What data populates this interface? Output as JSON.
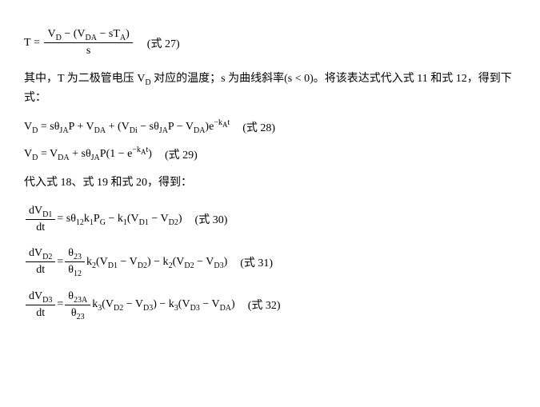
{
  "eq27": {
    "lhs": "T",
    "num_parts": {
      "VD": "V",
      "VD_sub": "D",
      "minus": " − (",
      "VDA": "V",
      "VDA_sub": "DA",
      "minus2": " − s",
      "TA": "T",
      "TA_sub": "A",
      "close": ")"
    },
    "den": "s",
    "label": "(式 27)"
  },
  "para1": {
    "t1": "其中，T 为二极管电压 V",
    "t1sub": "D",
    "t2": " 对应的温度；s 为曲线斜率(s < 0)。将该表达式代入式 11 和式 12，得到下式："
  },
  "eq28": {
    "p": {
      "VD": "V",
      "VDs": "D",
      "eq": " = sθ",
      "JA": "JA",
      "P": "P + ",
      "VDA": "V",
      "VDAs": "DA",
      "plus": " + (",
      "VDi": "V",
      "VDis": "Di",
      "m": " − sθ",
      "JA2": "JA",
      "P2": "P − ",
      "VDA2": "V",
      "VDA2s": "DA",
      "close": ")e",
      "exp1": "−k",
      "expA": "A",
      "expT": "t"
    },
    "label": "(式 28)"
  },
  "eq29": {
    "p": {
      "VD": "V",
      "VDs": "D",
      "eq": " = ",
      "VDA": "V",
      "VDAs": "DA",
      "plus": " + sθ",
      "JA": "JA",
      "P": "P(1 − e",
      "exp1": "−k",
      "expA": "A",
      "expT": "t",
      "close": ")"
    },
    "label": "(式 29)"
  },
  "para2": "代入式 18、式 19 和式 20，得到：",
  "eq30": {
    "num": {
      "d": "dV",
      "s": "D1"
    },
    "den": "dt",
    "rhs": {
      "a": " = sθ",
      "th": "12",
      "k": "k",
      "k1": "1",
      "PG": "P",
      "PGs": "G",
      "m": " − k",
      "k1b": "1",
      "o": "(V",
      "v1": "D1",
      "m2": " − V",
      "v2": "D2",
      "c": ")"
    },
    "label": "(式 30)"
  },
  "eq31": {
    "num": {
      "d": "dV",
      "s": "D2"
    },
    "den": "dt",
    "eq": " = ",
    "fnum": {
      "th": "θ",
      "s": "23"
    },
    "fden": {
      "th": "θ",
      "s": "12"
    },
    "rhs": {
      "k": "k",
      "k2": "2",
      "o": "(V",
      "v1": "D1",
      "m": " − V",
      "v2": "D2",
      "c": ") − k",
      "k2b": "2",
      "o2": "(V",
      "v3": "D2",
      "m2": " − V",
      "v4": "D3",
      "c2": ")"
    },
    "label": "(式 31)"
  },
  "eq32": {
    "num": {
      "d": "dV",
      "s": "D3"
    },
    "den": "dt",
    "eq": " = ",
    "fnum": {
      "th": "θ",
      "s": "23A"
    },
    "fden": {
      "th": "θ",
      "s": "23"
    },
    "rhs": {
      "k": "k",
      "k3": "3",
      "o": "(V",
      "v1": "D2",
      "m": " − V",
      "v2": "D3",
      "c": ") − k",
      "k3b": "3",
      "o2": "(V",
      "v3": "D3",
      "m2": " − V",
      "v4": "DA",
      "c2": ")"
    },
    "label": "(式 32)"
  }
}
